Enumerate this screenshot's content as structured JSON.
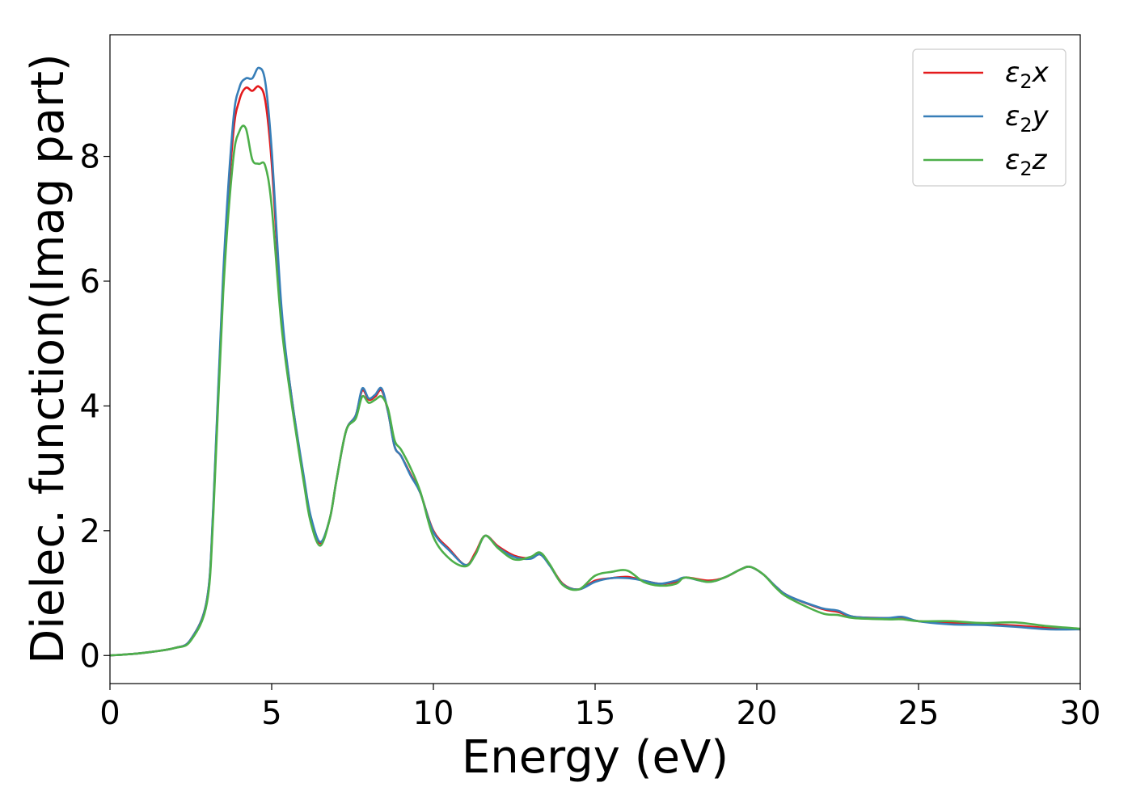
{
  "chart_data": {
    "type": "line",
    "title": "",
    "xlabel": "Energy (eV)",
    "ylabel": "Dielec. function(Imag part)",
    "xlim": [
      0,
      30
    ],
    "ylim": [
      -0.45,
      9.95
    ],
    "xticks": [
      0,
      5,
      10,
      15,
      20,
      25,
      30
    ],
    "xtick_labels": [
      "0",
      "5",
      "10",
      "15",
      "20",
      "25",
      "30"
    ],
    "yticks": [
      0,
      2,
      4,
      6,
      8
    ],
    "ytick_labels": [
      "0",
      "2",
      "4",
      "6",
      "8"
    ],
    "grid": false,
    "legend_position": "top-right",
    "series": [
      {
        "name": "ε2x",
        "legend_base": "ε",
        "legend_sub": "2",
        "legend_var": "x",
        "color": "#e41a1c",
        "x": [
          0,
          1,
          2,
          2.5,
          3,
          3.2,
          3.5,
          3.8,
          4.0,
          4.2,
          4.4,
          4.6,
          4.8,
          5.0,
          5.3,
          5.6,
          6.0,
          6.2,
          6.5,
          6.8,
          7.0,
          7.3,
          7.6,
          7.8,
          8.0,
          8.2,
          8.4,
          8.6,
          8.8,
          9.0,
          9.3,
          9.6,
          10.0,
          10.5,
          11.0,
          11.3,
          11.6,
          12.0,
          12.5,
          13.0,
          13.3,
          13.6,
          14.0,
          14.5,
          15.0,
          15.5,
          16.0,
          16.5,
          17.0,
          17.5,
          17.8,
          18.5,
          19.0,
          19.5,
          19.8,
          20.2,
          20.6,
          21.0,
          22.0,
          22.5,
          23.0,
          24.0,
          24.5,
          25.0,
          26.0,
          27.0,
          28.0,
          29.0,
          30.0
        ],
        "values": [
          0.0,
          0.04,
          0.12,
          0.26,
          0.9,
          2.4,
          6.0,
          8.3,
          8.9,
          9.1,
          9.05,
          9.12,
          8.9,
          7.9,
          5.5,
          4.2,
          2.8,
          2.2,
          1.8,
          2.2,
          2.8,
          3.6,
          3.85,
          4.25,
          4.1,
          4.15,
          4.25,
          3.9,
          3.35,
          3.2,
          2.9,
          2.6,
          2.0,
          1.7,
          1.45,
          1.65,
          1.92,
          1.75,
          1.6,
          1.56,
          1.62,
          1.45,
          1.15,
          1.06,
          1.2,
          1.24,
          1.26,
          1.2,
          1.15,
          1.18,
          1.25,
          1.2,
          1.25,
          1.38,
          1.42,
          1.3,
          1.1,
          0.95,
          0.75,
          0.7,
          0.62,
          0.6,
          0.6,
          0.55,
          0.52,
          0.5,
          0.48,
          0.44,
          0.42
        ]
      },
      {
        "name": "ε2y",
        "legend_base": "ε",
        "legend_sub": "2",
        "legend_var": "y",
        "color": "#377eb8",
        "x": [
          0,
          1,
          2,
          2.5,
          3,
          3.2,
          3.5,
          3.8,
          4.0,
          4.2,
          4.4,
          4.6,
          4.8,
          5.0,
          5.3,
          5.6,
          6.0,
          6.2,
          6.5,
          6.8,
          7.0,
          7.3,
          7.6,
          7.8,
          8.0,
          8.2,
          8.4,
          8.6,
          8.8,
          9.0,
          9.3,
          9.6,
          10.0,
          10.5,
          11.0,
          11.3,
          11.6,
          12.0,
          12.5,
          13.0,
          13.3,
          13.6,
          14.0,
          14.5,
          15.0,
          15.5,
          16.0,
          16.5,
          17.0,
          17.5,
          17.8,
          18.5,
          19.0,
          19.5,
          19.8,
          20.2,
          20.6,
          21.0,
          22.0,
          22.5,
          23.0,
          24.0,
          24.5,
          25.0,
          26.0,
          27.0,
          28.0,
          29.0,
          30.0
        ],
        "values": [
          0.0,
          0.04,
          0.12,
          0.26,
          0.9,
          2.45,
          6.1,
          8.5,
          9.1,
          9.25,
          9.25,
          9.42,
          9.2,
          8.1,
          5.6,
          4.2,
          2.85,
          2.25,
          1.82,
          2.2,
          2.8,
          3.6,
          3.85,
          4.28,
          4.12,
          4.18,
          4.28,
          3.9,
          3.35,
          3.2,
          2.88,
          2.6,
          1.98,
          1.68,
          1.45,
          1.62,
          1.92,
          1.73,
          1.58,
          1.55,
          1.62,
          1.44,
          1.14,
          1.06,
          1.18,
          1.24,
          1.24,
          1.2,
          1.15,
          1.2,
          1.25,
          1.18,
          1.25,
          1.38,
          1.42,
          1.3,
          1.1,
          0.95,
          0.76,
          0.72,
          0.62,
          0.6,
          0.62,
          0.55,
          0.5,
          0.49,
          0.46,
          0.42,
          0.42
        ]
      },
      {
        "name": "ε2z",
        "legend_base": "ε",
        "legend_sub": "2",
        "legend_var": "z",
        "color": "#4daf4a",
        "x": [
          0,
          1,
          2,
          2.5,
          3,
          3.2,
          3.5,
          3.8,
          4.0,
          4.2,
          4.4,
          4.6,
          4.8,
          5.0,
          5.3,
          5.6,
          6.0,
          6.2,
          6.5,
          6.8,
          7.0,
          7.3,
          7.6,
          7.8,
          8.0,
          8.2,
          8.4,
          8.6,
          8.8,
          9.0,
          9.3,
          9.6,
          10.0,
          10.5,
          11.0,
          11.3,
          11.6,
          12.0,
          12.5,
          13.0,
          13.3,
          13.6,
          14.0,
          14.5,
          15.0,
          15.5,
          16.0,
          16.5,
          17.0,
          17.5,
          17.8,
          18.5,
          19.0,
          19.5,
          19.8,
          20.2,
          20.6,
          21.0,
          22.0,
          22.5,
          23.0,
          24.0,
          24.5,
          25.0,
          26.0,
          27.0,
          28.0,
          29.0,
          30.0
        ],
        "values": [
          0.0,
          0.04,
          0.12,
          0.24,
          0.85,
          2.3,
          5.8,
          7.9,
          8.4,
          8.45,
          7.95,
          7.88,
          7.85,
          7.2,
          5.3,
          4.1,
          2.75,
          2.15,
          1.76,
          2.2,
          2.8,
          3.6,
          3.8,
          4.15,
          4.05,
          4.1,
          4.15,
          3.95,
          3.45,
          3.3,
          3.0,
          2.62,
          1.9,
          1.55,
          1.43,
          1.62,
          1.92,
          1.72,
          1.54,
          1.58,
          1.65,
          1.46,
          1.13,
          1.06,
          1.28,
          1.34,
          1.36,
          1.18,
          1.12,
          1.15,
          1.25,
          1.18,
          1.25,
          1.38,
          1.42,
          1.3,
          1.08,
          0.92,
          0.68,
          0.65,
          0.6,
          0.58,
          0.58,
          0.55,
          0.55,
          0.52,
          0.53,
          0.47,
          0.43
        ]
      }
    ]
  }
}
